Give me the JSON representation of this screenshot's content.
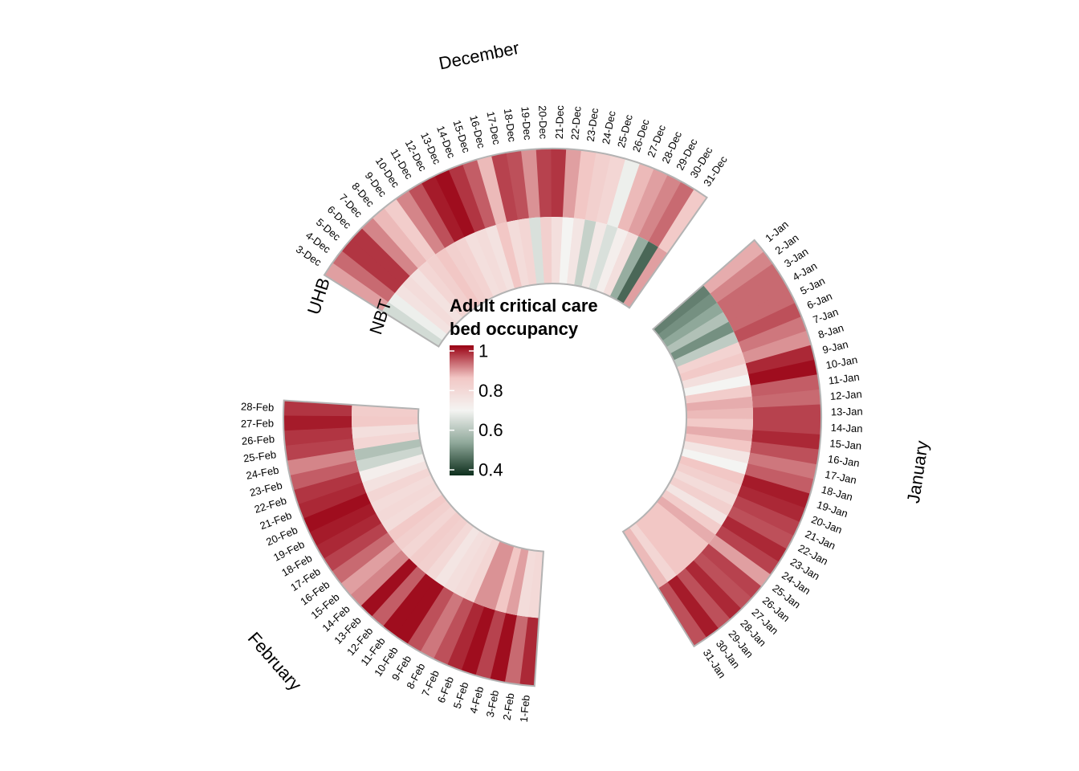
{
  "chart_data": {
    "type": "heatmap",
    "subtype": "circular-heatmap",
    "legend": {
      "title_lines": [
        "Adult critical care",
        "bed occupancy"
      ],
      "ticks": [
        {
          "value": 1,
          "label": "1"
        },
        {
          "value": 0.8,
          "label": "0.8"
        },
        {
          "value": 0.6,
          "label": "0.6"
        },
        {
          "value": 0.4,
          "label": "0.4"
        }
      ],
      "range": [
        0.4,
        1.0
      ],
      "colors": {
        "low": "#0d2e1c",
        "mid_low": "#8fa89a",
        "mid": "#f4f4f2",
        "mid_high": "#f2c7c5",
        "high": "#990012"
      }
    },
    "rings": [
      {
        "name": "UHB",
        "label": "UHB"
      },
      {
        "name": "NBT",
        "label": "NBT"
      }
    ],
    "months": [
      {
        "name": "December",
        "days": [
          "3-Dec",
          "4-Dec",
          "5-Dec",
          "6-Dec",
          "7-Dec",
          "8-Dec",
          "9-Dec",
          "10-Dec",
          "11-Dec",
          "12-Dec",
          "13-Dec",
          "14-Dec",
          "15-Dec",
          "16-Dec",
          "17-Dec",
          "18-Dec",
          "19-Dec",
          "20-Dec",
          "21-Dec",
          "22-Dec",
          "23-Dec",
          "24-Dec",
          "25-Dec",
          "26-Dec",
          "27-Dec",
          "28-Dec",
          "29-Dec",
          "30-Dec",
          "31-Dec"
        ],
        "UHB": [
          0.88,
          0.92,
          0.96,
          0.96,
          0.9,
          0.86,
          0.83,
          0.9,
          0.94,
          0.98,
          0.99,
          0.96,
          0.93,
          0.86,
          0.95,
          0.94,
          0.89,
          0.95,
          0.96,
          0.88,
          0.85,
          0.82,
          0.8,
          0.69,
          0.86,
          0.88,
          0.9,
          0.92,
          0.84
        ],
        "NBT": [
          0.65,
          0.69,
          0.76,
          0.78,
          0.76,
          0.8,
          0.82,
          0.85,
          0.82,
          0.81,
          0.77,
          0.78,
          0.76,
          0.85,
          0.78,
          0.8,
          0.66,
          0.82,
          0.77,
          0.7,
          0.75,
          0.63,
          0.74,
          0.66,
          0.72,
          0.77,
          0.56,
          0.47,
          0.88
        ]
      },
      {
        "name": "January",
        "days": [
          "1-Jan",
          "2-Jan",
          "3-Jan",
          "4-Jan",
          "5-Jan",
          "6-Jan",
          "7-Jan",
          "8-Jan",
          "9-Jan",
          "10-Jan",
          "11-Jan",
          "12-Jan",
          "13-Jan",
          "14-Jan",
          "15-Jan",
          "16-Jan",
          "17-Jan",
          "18-Jan",
          "19-Jan",
          "20-Jan",
          "21-Jan",
          "22-Jan",
          "23-Jan",
          "24-Jan",
          "25-Jan",
          "26-Jan",
          "27-Jan",
          "28-Jan",
          "29-Jan",
          "30-Jan",
          "31-Jan"
        ],
        "UHB": [
          0.87,
          0.9,
          0.92,
          0.92,
          0.92,
          0.94,
          0.91,
          0.89,
          0.97,
          0.99,
          0.93,
          0.92,
          0.95,
          0.95,
          0.97,
          0.94,
          0.91,
          0.93,
          0.98,
          0.97,
          0.95,
          0.94,
          0.97,
          0.95,
          0.88,
          0.95,
          0.94,
          0.97,
          0.94,
          0.98,
          0.94
        ],
        "NBT": [
          0.5,
          0.52,
          0.55,
          0.6,
          0.52,
          0.62,
          0.81,
          0.84,
          0.77,
          0.7,
          0.83,
          0.87,
          0.86,
          0.84,
          0.87,
          0.85,
          0.75,
          0.7,
          0.85,
          0.82,
          0.78,
          0.82,
          0.75,
          0.83,
          0.87,
          0.85,
          0.85,
          0.85,
          0.85,
          0.8,
          0.86
        ]
      },
      {
        "name": "February",
        "days": [
          "1-Feb",
          "2-Feb",
          "3-Feb",
          "4-Feb",
          "5-Feb",
          "6-Feb",
          "7-Feb",
          "8-Feb",
          "9-Feb",
          "10-Feb",
          "11-Feb",
          "12-Feb",
          "13-Feb",
          "14-Feb",
          "15-Feb",
          "16-Feb",
          "17-Feb",
          "18-Feb",
          "19-Feb",
          "20-Feb",
          "21-Feb",
          "22-Feb",
          "23-Feb",
          "24-Feb",
          "25-Feb",
          "26-Feb",
          "27-Feb",
          "28-Feb"
        ],
        "UHB": [
          0.97,
          0.92,
          0.99,
          0.95,
          0.99,
          0.97,
          0.94,
          0.91,
          0.94,
          0.99,
          0.99,
          0.93,
          0.99,
          0.9,
          0.88,
          0.92,
          0.95,
          0.97,
          0.98,
          0.99,
          0.97,
          0.96,
          0.93,
          0.9,
          0.95,
          0.96,
          0.98,
          0.96
        ],
        "NBT": [
          0.79,
          0.78,
          0.88,
          0.85,
          0.89,
          0.89,
          0.8,
          0.78,
          0.77,
          0.75,
          0.79,
          0.82,
          0.83,
          0.8,
          0.82,
          0.84,
          0.78,
          0.79,
          0.78,
          0.8,
          0.76,
          0.72,
          0.64,
          0.6,
          0.8,
          0.77,
          0.84,
          0.83
        ]
      }
    ]
  }
}
